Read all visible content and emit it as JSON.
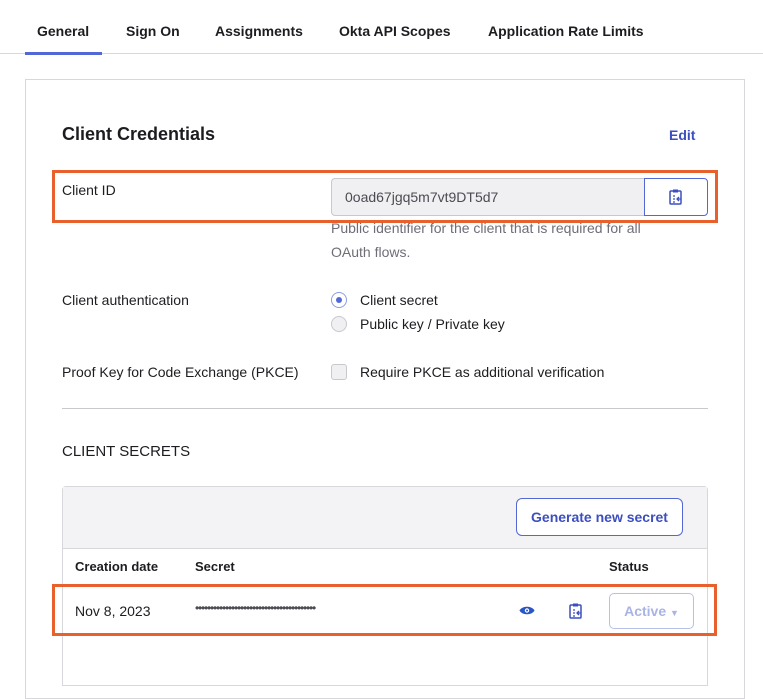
{
  "tabs": [
    {
      "label": "General",
      "active": true
    },
    {
      "label": "Sign On"
    },
    {
      "label": "Assignments"
    },
    {
      "label": "Okta API Scopes"
    },
    {
      "label": "Application Rate Limits"
    }
  ],
  "credentials": {
    "title": "Client Credentials",
    "edit_label": "Edit",
    "client_id_label": "Client ID",
    "client_id_value": "0oad67jgq5m7vt9DT5d7",
    "client_id_help": "Public identifier for the client that is required for all OAuth flows.",
    "client_auth_label": "Client authentication",
    "client_auth_options": [
      {
        "label": "Client secret",
        "selected": true
      },
      {
        "label": "Public key / Private key",
        "selected": false
      }
    ],
    "pkce_label": "Proof Key for Code Exchange (PKCE)",
    "pkce_option": "Require PKCE as additional verification",
    "pkce_checked": false
  },
  "secrets": {
    "title": "CLIENT SECRETS",
    "generate_label": "Generate new secret",
    "columns": [
      "Creation date",
      "Secret",
      "Status"
    ],
    "rows": [
      {
        "date": "Nov 8, 2023",
        "secret": "••••••••••••••••••••••••••••••••••••••••",
        "status": "Active"
      }
    ]
  },
  "colors": {
    "accent": "#5468d5",
    "highlight": "#e8602c"
  }
}
